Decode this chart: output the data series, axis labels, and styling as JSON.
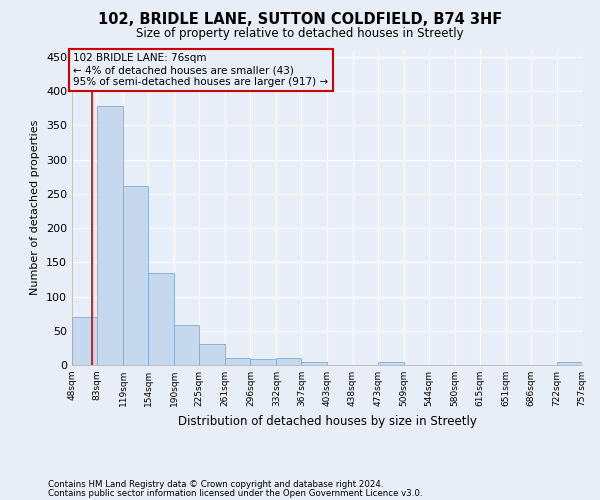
{
  "title": "102, BRIDLE LANE, SUTTON COLDFIELD, B74 3HF",
  "subtitle": "Size of property relative to detached houses in Streetly",
  "xlabel": "Distribution of detached houses by size in Streetly",
  "ylabel": "Number of detached properties",
  "footnote1": "Contains HM Land Registry data © Crown copyright and database right 2024.",
  "footnote2": "Contains public sector information licensed under the Open Government Licence v3.0.",
  "annotation_title": "102 BRIDLE LANE: 76sqm",
  "annotation_line1": "← 4% of detached houses are smaller (43)",
  "annotation_line2": "95% of semi-detached houses are larger (917) →",
  "bar_color": "#c5d8ee",
  "bar_edge_color": "#7aaed6",
  "marker_color": "#cc0000",
  "annotation_box_color": "#cc0000",
  "background_color": "#e8eef8",
  "plot_bg_color": "#e8eef8",
  "grid_color": "#ffffff",
  "ylim": [
    0,
    460
  ],
  "yticks": [
    0,
    50,
    100,
    150,
    200,
    250,
    300,
    350,
    400,
    450
  ],
  "bin_edges": [
    48,
    83,
    119,
    154,
    190,
    225,
    261,
    296,
    332,
    367,
    403,
    438,
    473,
    509,
    544,
    580,
    615,
    651,
    686,
    722,
    757
  ],
  "bin_counts": [
    70,
    378,
    262,
    135,
    59,
    30,
    10,
    9,
    10,
    5,
    0,
    0,
    5,
    0,
    0,
    0,
    0,
    0,
    0,
    5
  ],
  "property_size": 76,
  "tick_labels": [
    "48sqm",
    "83sqm",
    "119sqm",
    "154sqm",
    "190sqm",
    "225sqm",
    "261sqm",
    "296sqm",
    "332sqm",
    "367sqm",
    "403sqm",
    "438sqm",
    "473sqm",
    "509sqm",
    "544sqm",
    "580sqm",
    "615sqm",
    "651sqm",
    "686sqm",
    "722sqm",
    "757sqm"
  ]
}
